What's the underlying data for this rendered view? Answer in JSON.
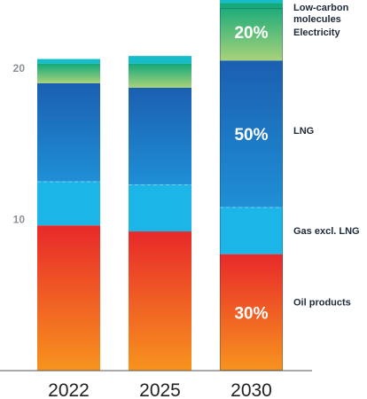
{
  "chart_data": {
    "type": "bar",
    "stacked": true,
    "categories": [
      "2022",
      "2025",
      "2030"
    ],
    "ylim": [
      0,
      24.5
    ],
    "yticks": [
      10,
      20
    ],
    "grid": false,
    "legend_position": "right",
    "series": [
      {
        "name": "Oil products",
        "values": [
          9.6,
          9.2,
          7.7
        ],
        "label_2030": "30%"
      },
      {
        "name": "Gas excl. LNG",
        "values": [
          2.9,
          3.1,
          3.1
        ],
        "label_2030": ""
      },
      {
        "name": "LNG",
        "values": [
          6.5,
          6.4,
          9.7
        ],
        "label_2030": "50%"
      },
      {
        "name": "Electricity",
        "values": [
          1.3,
          1.6,
          3.8
        ],
        "label_2030": "20%"
      },
      {
        "name": "Low-carbon molecules",
        "values": [
          0.3,
          0.5,
          1.2
        ],
        "label_2030": ""
      }
    ],
    "legend": [
      "Low-carbon\nmolecules",
      "Electricity",
      "LNG",
      "Gas excl. LNG",
      "Oil products"
    ],
    "colors": {
      "oil_top": "#e8292a",
      "oil_bottom": "#f7931e",
      "gas": "#1cb5e8",
      "lng_top": "#1b5fb0",
      "lng_bottom": "#1f8fd6",
      "elec_top": "#10a87a",
      "elec_bottom": "#a8d27a",
      "lowcarbon": "#16bcc8",
      "axis": "#555555",
      "tick": "#8a8f96"
    }
  }
}
